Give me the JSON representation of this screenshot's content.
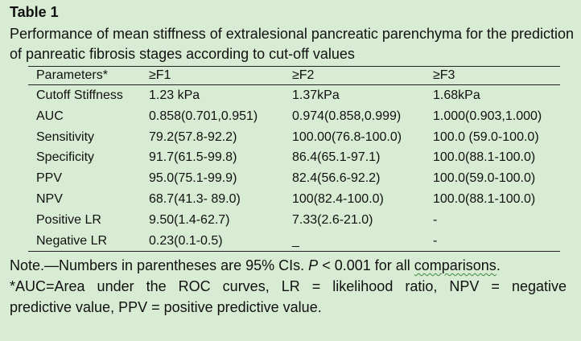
{
  "title": "Table 1",
  "caption": "Performance of mean stiffness of extralesional pancreatic parenchyma for the prediction of panreatic fibrosis stages according to cut-off values",
  "table": {
    "headers": [
      "Parameters*",
      "≥F1",
      "≥F2",
      "≥F3"
    ],
    "rows": [
      [
        "Cutoff Stiffness",
        "1.23 kPa",
        "1.37kPa",
        "1.68kPa"
      ],
      [
        "AUC",
        "0.858(0.701,0.951)",
        "0.974(0.858,0.999)",
        "1.000(0.903,1.000)"
      ],
      [
        "Sensitivity",
        "79.2(57.8-92.2)",
        "100.00(76.8-100.0)",
        "100.0 (59.0-100.0)"
      ],
      [
        "Specificity",
        "91.7(61.5-99.8)",
        "86.4(65.1-97.1)",
        "100.0(88.1-100.0)"
      ],
      [
        "PPV",
        "95.0(75.1-99.9)",
        "82.4(56.6-92.2)",
        "100.0(59.0-100.0)"
      ],
      [
        "NPV",
        "68.7(41.3- 89.0)",
        "100(82.4-100.0)",
        "100.0(88.1-100.0)"
      ],
      [
        "Positive LR",
        "9.50(1.4-62.7)",
        "7.33(2.6-21.0)",
        "-"
      ],
      [
        "Negative LR",
        "0.23(0.1-0.5)",
        "_",
        "-"
      ]
    ]
  },
  "note": {
    "prefix": "Note.—Numbers in parentheses are 95% CIs. ",
    "p_italic": "P",
    "p_rest": " < 0.001 for all ",
    "squiggle_word": "comparisons",
    "end": ".",
    "abbrev_line1": "*AUC=Area under the ROC curves, LR = likelihood ratio, NPV = negative",
    "abbrev_line2": "predictive value, PPV = positive predictive value."
  }
}
